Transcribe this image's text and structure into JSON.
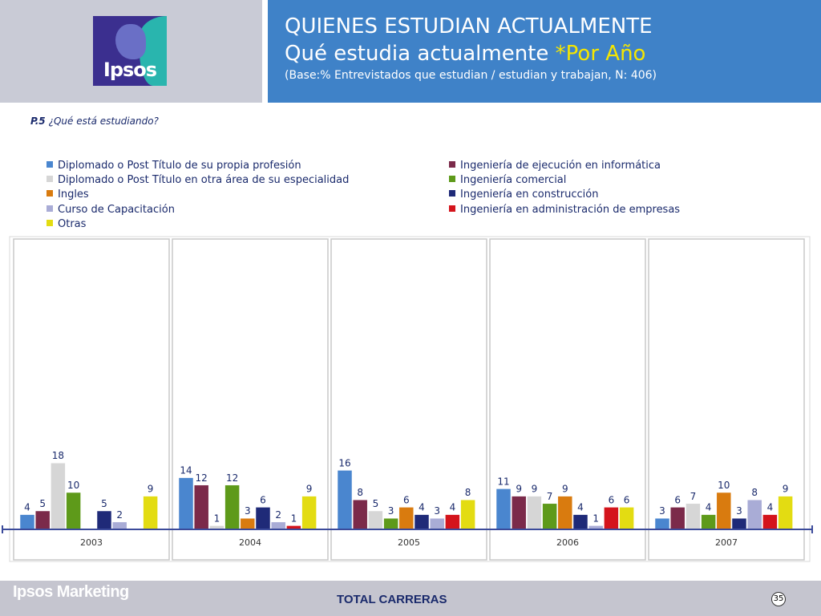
{
  "header": {
    "brand": "Ipsos",
    "title_line1": "QUIENES ESTUDIAN ACTUALMENTE",
    "title_line2_main": "Qué estudia actualmente ",
    "title_line2_highlight": "*Por Año",
    "subtitle": "(Base:% Entrevistados que  estudian / estudian y trabajan, N: 406)"
  },
  "question": {
    "code": "P.5",
    "text": "¿Qué está estudiando?"
  },
  "colors": {
    "header_bg": "#3f82c8",
    "highlight": "#f5e600",
    "text_navy": "#1a2a6c"
  },
  "chart_data": {
    "type": "bar",
    "categories": [
      "2003",
      "2004",
      "2005",
      "2006",
      "2007"
    ],
    "series": [
      {
        "name": "Diplomado o Post Título de su propia profesión",
        "color": "#4a86cf",
        "values": [
          4,
          14,
          16,
          11,
          3
        ]
      },
      {
        "name": "Ingeniería de ejecución en informática",
        "color": "#7b2a4a",
        "values": [
          5,
          12,
          8,
          9,
          6
        ]
      },
      {
        "name": "Diplomado o Post Título en otra área de su especialidad",
        "color": "#d6d6d6",
        "values": [
          18,
          1,
          5,
          9,
          7
        ]
      },
      {
        "name": "Ingeniería comercial",
        "color": "#5e9a1a",
        "values": [
          10,
          12,
          3,
          7,
          4
        ]
      },
      {
        "name": "Ingles",
        "color": "#d97b0f",
        "values": [
          null,
          3,
          6,
          9,
          10
        ]
      },
      {
        "name": "Ingeniería en construcción",
        "color": "#1f2a78",
        "values": [
          5,
          6,
          4,
          4,
          3
        ]
      },
      {
        "name": "Curso de Capacitación",
        "color": "#a9acd6",
        "values": [
          2,
          2,
          3,
          1,
          8
        ]
      },
      {
        "name": "Ingeniería en administración de empresas",
        "color": "#d4141c",
        "values": [
          null,
          1,
          4,
          6,
          4
        ]
      },
      {
        "name": "Otras",
        "color": "#e3dc12",
        "values": [
          9,
          9,
          8,
          6,
          9
        ]
      }
    ],
    "ylim": [
      0,
      20
    ]
  },
  "footer": {
    "brand": "Ipsos Marketing",
    "total": "TOTAL CARRERAS",
    "page": "35"
  }
}
